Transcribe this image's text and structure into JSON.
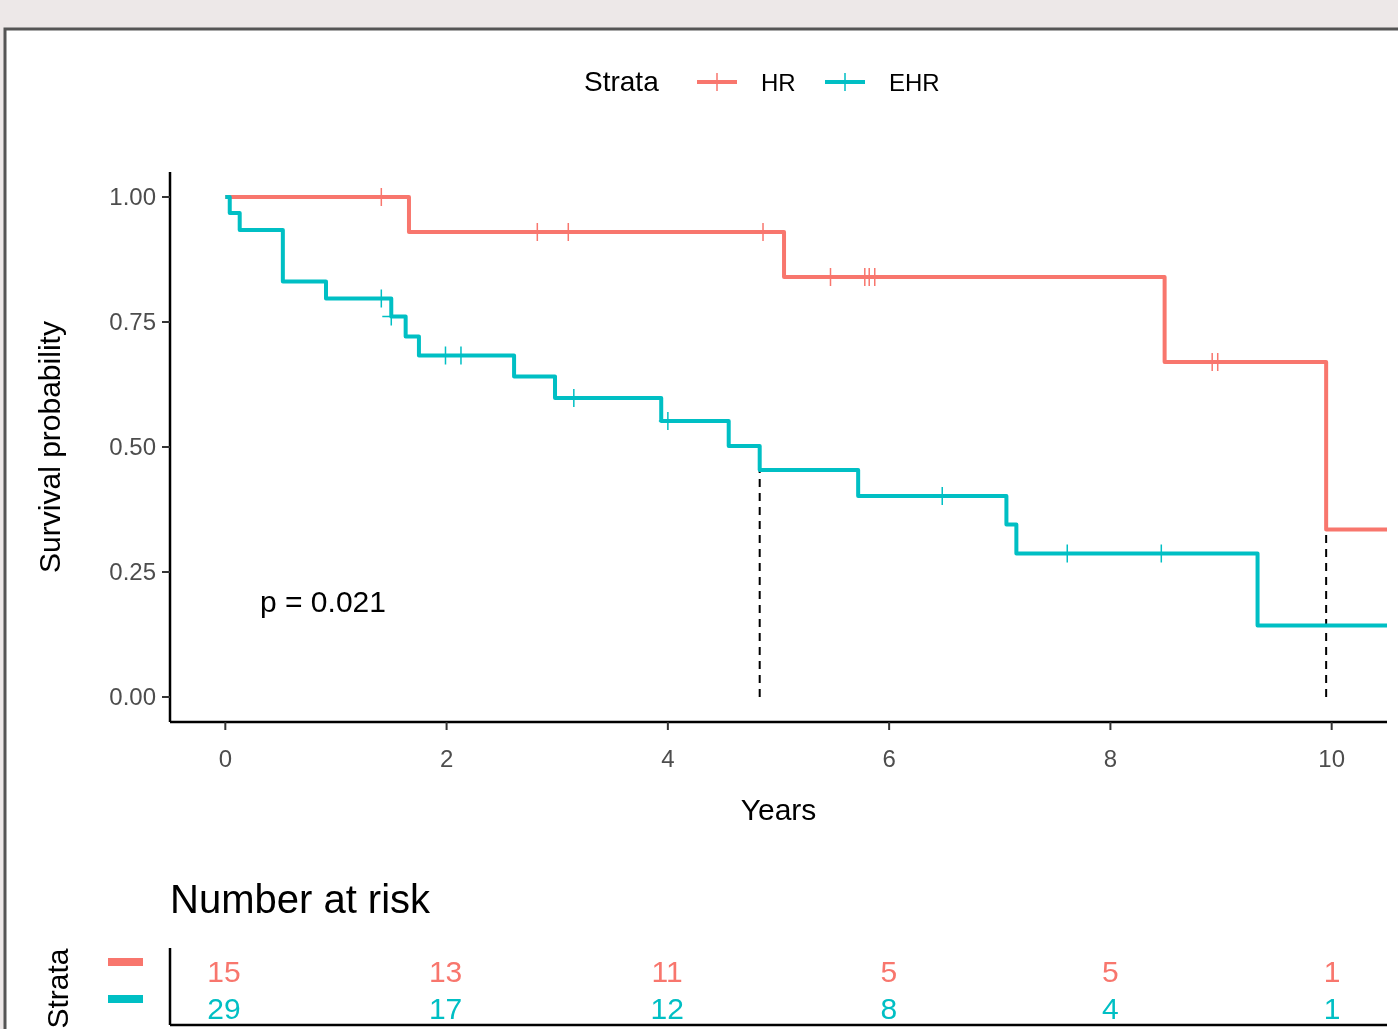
{
  "chart_data": [
    {
      "type": "step",
      "legend_title": "Strata",
      "legend": "top",
      "xlabel": "Years",
      "ylabel": "Survival probability",
      "xlim": [
        -0.5,
        10.5
      ],
      "xticks": [
        0,
        2,
        4,
        6,
        8,
        10
      ],
      "ylim": [
        -0.05,
        1.05
      ],
      "yticks": [
        {
          "value": 0,
          "label": "0.00"
        },
        {
          "value": 0.25,
          "label": "0.25"
        },
        {
          "value": 0.5,
          "label": "0.50"
        },
        {
          "value": 0.75,
          "label": "0.75"
        },
        {
          "value": 1,
          "label": "1.00"
        }
      ],
      "series": [
        {
          "name": "HR",
          "color": "#f8766d",
          "x": [
            0,
            1.66,
            5.05,
            8.49,
            9.95,
            10.5
          ],
          "values": [
            1,
            0.93,
            0.84,
            0.67,
            0.335,
            0.335
          ]
        },
        {
          "name": "EHR",
          "color": "#00bfc4",
          "x": [
            0,
            0.04,
            0.13,
            0.52,
            0.91,
            1.5,
            1.63,
            1.75,
            2.61,
            2.98,
            3.94,
            4.55,
            4.83,
            5.72,
            7.06,
            7.15,
            9.33,
            10.5
          ],
          "values": [
            1,
            0.968,
            0.934,
            0.831,
            0.797,
            0.761,
            0.721,
            0.683,
            0.641,
            0.598,
            0.552,
            0.502,
            0.454,
            0.402,
            0.345,
            0.287,
            0.143,
            0.143
          ]
        },
        {
          "type": "scatter",
          "marker": "cross",
          "color": "#f8766d",
          "x": [
            1.41,
            2.82,
            3.1,
            4.86,
            5.47,
            5.78,
            5.82,
            5.87,
            8.92,
            8.97
          ],
          "values": [
            1,
            0.93,
            0.93,
            0.93,
            0.84,
            0.84,
            0.84,
            0.84,
            0.67,
            0.67
          ]
        },
        {
          "type": "scatter",
          "marker": "cross",
          "color": "#00bfc4",
          "x": [
            1.41,
            1.5,
            1.99,
            2.13,
            3.15,
            4.0,
            6.48,
            7.61,
            8.46
          ],
          "values": [
            0.797,
            0.761,
            0.683,
            0.683,
            0.598,
            0.552,
            0.402,
            0.287,
            0.287
          ]
        }
      ],
      "ref_lines": [
        {
          "axis": "x",
          "value": 4.83,
          "color": "#000000",
          "line_style": "dashed"
        },
        {
          "axis": "x",
          "value": 9.95,
          "color": "#000000",
          "line_style": "dashed"
        }
      ],
      "annotations": [
        "p = 0.021"
      ]
    },
    {
      "type": "heatmap",
      "title": "Number at risk",
      "ylabel": "Strata",
      "categories": [
        null,
        null,
        null,
        null,
        null,
        null
      ],
      "y_categories": [
        null,
        null
      ],
      "data_labels": true,
      "colors": [
        "#f8766d",
        "#00bfc4"
      ],
      "cells": [
        [
          15,
          13,
          11,
          5,
          5,
          1
        ],
        [
          29,
          17,
          12,
          8,
          4,
          1
        ]
      ]
    }
  ]
}
